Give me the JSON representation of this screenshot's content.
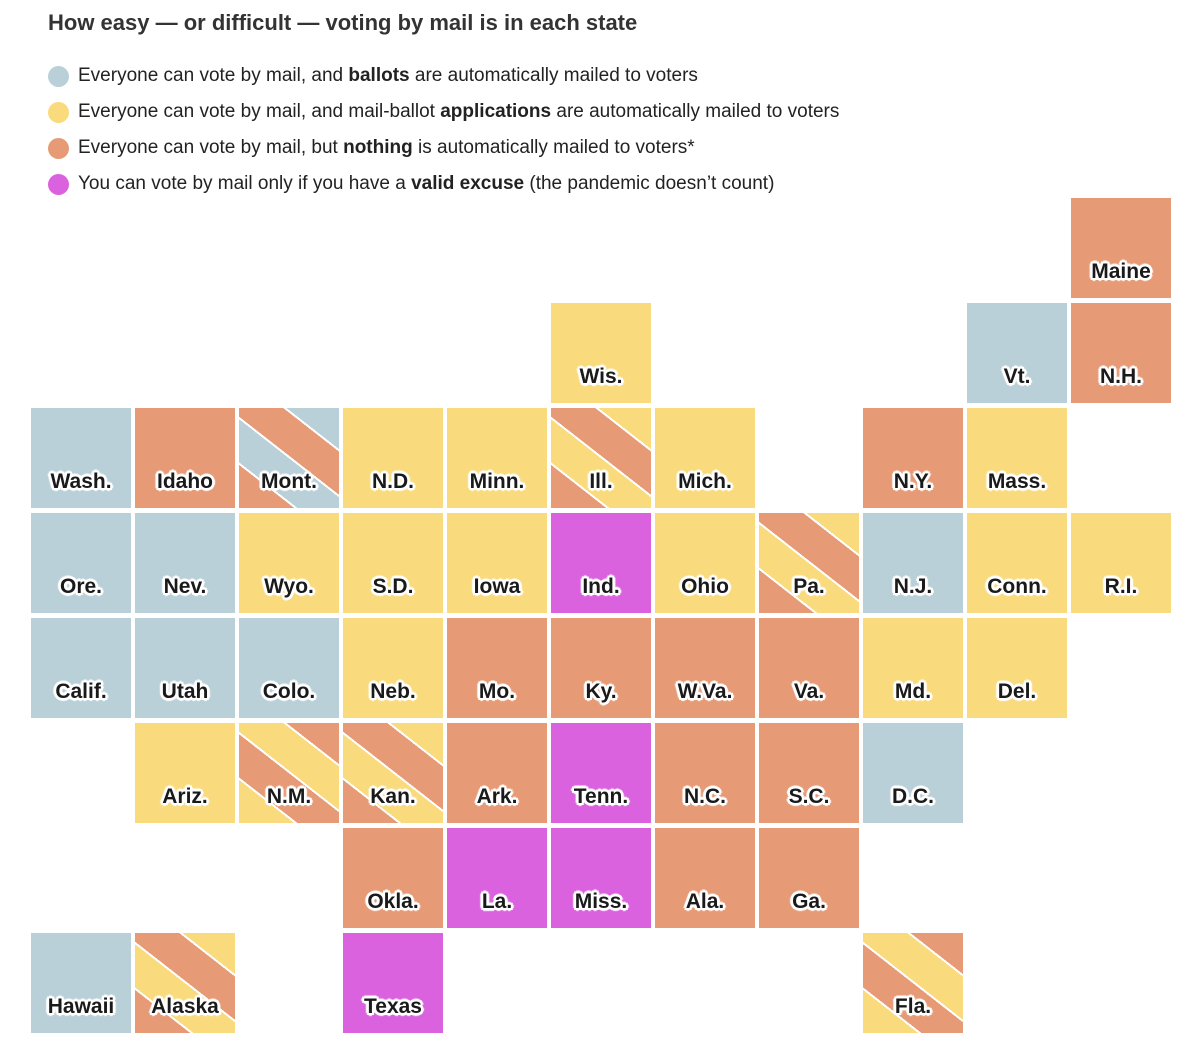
{
  "title": "How easy — or difficult — voting by mail is in each state",
  "colors": {
    "ballots": "#b9d0d8",
    "applications": "#f9db7e",
    "nothing": "#e69a75",
    "excuse": "#db62de"
  },
  "legend": [
    {
      "key": "ballots",
      "pre": "Everyone can vote by mail, and ",
      "bold": "ballots",
      "post": " are automatically mailed to voters"
    },
    {
      "key": "applications",
      "pre": "Everyone can vote by mail, and mail-ballot ",
      "bold": "applications",
      "post": " are automatically mailed to voters"
    },
    {
      "key": "nothing",
      "pre": "Everyone can vote by mail, but ",
      "bold": "nothing",
      "post": " is automatically mailed to voters*"
    },
    {
      "key": "excuse",
      "pre": "You can vote by mail only if you have a ",
      "bold": "valid excuse",
      "post": " (the pandemic doesn’t count)"
    }
  ],
  "states": [
    {
      "name": "Maine",
      "cat": [
        "nothing"
      ]
    },
    {
      "name": "Wis.",
      "cat": [
        "applications"
      ]
    },
    {
      "name": "Vt.",
      "cat": [
        "ballots"
      ]
    },
    {
      "name": "N.H.",
      "cat": [
        "nothing"
      ]
    },
    {
      "name": "Wash.",
      "cat": [
        "ballots"
      ]
    },
    {
      "name": "Idaho",
      "cat": [
        "nothing"
      ]
    },
    {
      "name": "Mont.",
      "cat": [
        "ballots",
        "nothing"
      ]
    },
    {
      "name": "N.D.",
      "cat": [
        "applications"
      ]
    },
    {
      "name": "Minn.",
      "cat": [
        "applications"
      ]
    },
    {
      "name": "Ill.",
      "cat": [
        "applications",
        "nothing"
      ]
    },
    {
      "name": "Mich.",
      "cat": [
        "applications"
      ]
    },
    {
      "name": "N.Y.",
      "cat": [
        "nothing"
      ]
    },
    {
      "name": "Mass.",
      "cat": [
        "applications"
      ]
    },
    {
      "name": "Ore.",
      "cat": [
        "ballots"
      ]
    },
    {
      "name": "Nev.",
      "cat": [
        "ballots"
      ]
    },
    {
      "name": "Wyo.",
      "cat": [
        "applications"
      ]
    },
    {
      "name": "S.D.",
      "cat": [
        "applications"
      ]
    },
    {
      "name": "Iowa",
      "cat": [
        "applications"
      ]
    },
    {
      "name": "Ind.",
      "cat": [
        "excuse"
      ]
    },
    {
      "name": "Ohio",
      "cat": [
        "applications"
      ]
    },
    {
      "name": "Pa.",
      "cat": [
        "applications",
        "nothing"
      ]
    },
    {
      "name": "N.J.",
      "cat": [
        "ballots"
      ]
    },
    {
      "name": "Conn.",
      "cat": [
        "applications"
      ]
    },
    {
      "name": "R.I.",
      "cat": [
        "applications"
      ]
    },
    {
      "name": "Calif.",
      "cat": [
        "ballots"
      ]
    },
    {
      "name": "Utah",
      "cat": [
        "ballots"
      ]
    },
    {
      "name": "Colo.",
      "cat": [
        "ballots"
      ]
    },
    {
      "name": "Neb.",
      "cat": [
        "applications"
      ]
    },
    {
      "name": "Mo.",
      "cat": [
        "nothing"
      ]
    },
    {
      "name": "Ky.",
      "cat": [
        "nothing"
      ]
    },
    {
      "name": "W.Va.",
      "cat": [
        "nothing"
      ]
    },
    {
      "name": "Va.",
      "cat": [
        "nothing"
      ]
    },
    {
      "name": "Md.",
      "cat": [
        "applications"
      ]
    },
    {
      "name": "Del.",
      "cat": [
        "applications"
      ]
    },
    {
      "name": "Ariz.",
      "cat": [
        "applications"
      ]
    },
    {
      "name": "N.M.",
      "cat": [
        "nothing",
        "applications"
      ]
    },
    {
      "name": "Kan.",
      "cat": [
        "applications",
        "nothing"
      ]
    },
    {
      "name": "Ark.",
      "cat": [
        "nothing"
      ]
    },
    {
      "name": "Tenn.",
      "cat": [
        "excuse"
      ]
    },
    {
      "name": "N.C.",
      "cat": [
        "nothing"
      ]
    },
    {
      "name": "S.C.",
      "cat": [
        "nothing"
      ]
    },
    {
      "name": "D.C.",
      "cat": [
        "ballots"
      ]
    },
    {
      "name": "Okla.",
      "cat": [
        "nothing"
      ]
    },
    {
      "name": "La.",
      "cat": [
        "excuse"
      ]
    },
    {
      "name": "Miss.",
      "cat": [
        "excuse"
      ]
    },
    {
      "name": "Ala.",
      "cat": [
        "nothing"
      ]
    },
    {
      "name": "Ga.",
      "cat": [
        "nothing"
      ]
    },
    {
      "name": "Hawaii",
      "cat": [
        "ballots"
      ]
    },
    {
      "name": "Alaska",
      "cat": [
        "applications",
        "nothing"
      ]
    },
    {
      "name": "Texas",
      "cat": [
        "excuse"
      ]
    },
    {
      "name": "Fla.",
      "cat": [
        "nothing",
        "applications"
      ]
    }
  ]
}
